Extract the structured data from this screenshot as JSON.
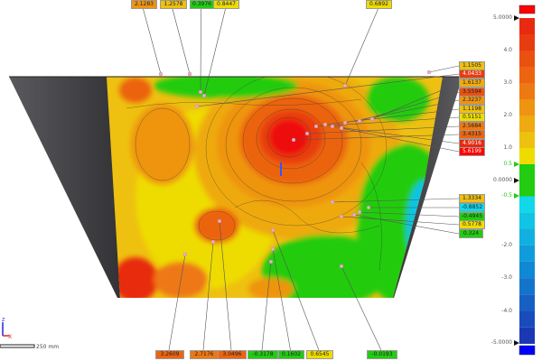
{
  "viewport": {
    "background": "#ffffff"
  },
  "colors": {
    "above_max": "#ff0000",
    "below_min": "#0000ff",
    "tolerance_band": "#22cc11",
    "wall": "#4a4a4e"
  },
  "legend": {
    "max_label": "5.0000",
    "min_label": "-5.0000",
    "zero_label": "0.0000",
    "upper_tol_label": "0.5",
    "lower_tol_label": "-0.5",
    "ticks": [
      {
        "value": 4.0,
        "label": "4.0"
      },
      {
        "value": 3.0,
        "label": "3.0"
      },
      {
        "value": 2.0,
        "label": "2.0"
      },
      {
        "value": 1.0,
        "label": "1.0"
      },
      {
        "value": -2.0,
        "label": "-2.0"
      },
      {
        "value": -3.0,
        "label": "-3.0"
      },
      {
        "value": -4.0,
        "label": "-4.0"
      }
    ],
    "bands": [
      {
        "from": 4.5,
        "to": 5.0,
        "color": "#e82a10"
      },
      {
        "from": 4.0,
        "to": 4.5,
        "color": "#e83c10"
      },
      {
        "from": 3.5,
        "to": 4.0,
        "color": "#ea5010"
      },
      {
        "from": 3.0,
        "to": 3.5,
        "color": "#ec6410"
      },
      {
        "from": 2.5,
        "to": 3.0,
        "color": "#ee7812"
      },
      {
        "from": 2.0,
        "to": 2.5,
        "color": "#ee9410"
      },
      {
        "from": 1.5,
        "to": 2.0,
        "color": "#eeaa10"
      },
      {
        "from": 1.0,
        "to": 1.5,
        "color": "#eec010"
      },
      {
        "from": 0.5,
        "to": 1.0,
        "color": "#eedc00"
      },
      {
        "from": -0.5,
        "to": 0.5,
        "color": "#22cc11"
      },
      {
        "from": -1.0,
        "to": -0.5,
        "color": "#10d8e8"
      },
      {
        "from": -1.5,
        "to": -1.0,
        "color": "#10c4e4"
      },
      {
        "from": -2.0,
        "to": -1.5,
        "color": "#10b0e0"
      },
      {
        "from": -2.5,
        "to": -2.0,
        "color": "#109cdc"
      },
      {
        "from": -3.0,
        "to": -2.5,
        "color": "#1088d4"
      },
      {
        "from": -3.5,
        "to": -3.0,
        "color": "#1474cc"
      },
      {
        "from": -4.0,
        "to": -3.5,
        "color": "#1660c4"
      },
      {
        "from": -4.5,
        "to": -4.0,
        "color": "#184cbc"
      },
      {
        "from": -5.0,
        "to": -4.5,
        "color": "#1a38b4"
      }
    ]
  },
  "annotations": {
    "top": [
      "2.1283",
      "1.2578",
      "0.3976",
      "0.8447",
      "0.6892"
    ],
    "right_upper": [
      "1.1505",
      "4.0433",
      "1.6137",
      "3.5594",
      "2.3237",
      "1.1198",
      "0.5151",
      "2.5684",
      "3.4315",
      "4.9016",
      "5.6199"
    ],
    "right_lower": [
      "1.3334",
      "-0.8852",
      "-0.4945",
      "0.5778",
      "0.324"
    ],
    "bottom": [
      "3.2609",
      "2.7176",
      "3.0496",
      "-0.3178",
      "0.1602",
      "0.6545",
      "-0.0193"
    ]
  },
  "axes": {
    "z_label": "Z",
    "x_label": "X"
  },
  "scale_bar": {
    "label": "250 mm"
  }
}
